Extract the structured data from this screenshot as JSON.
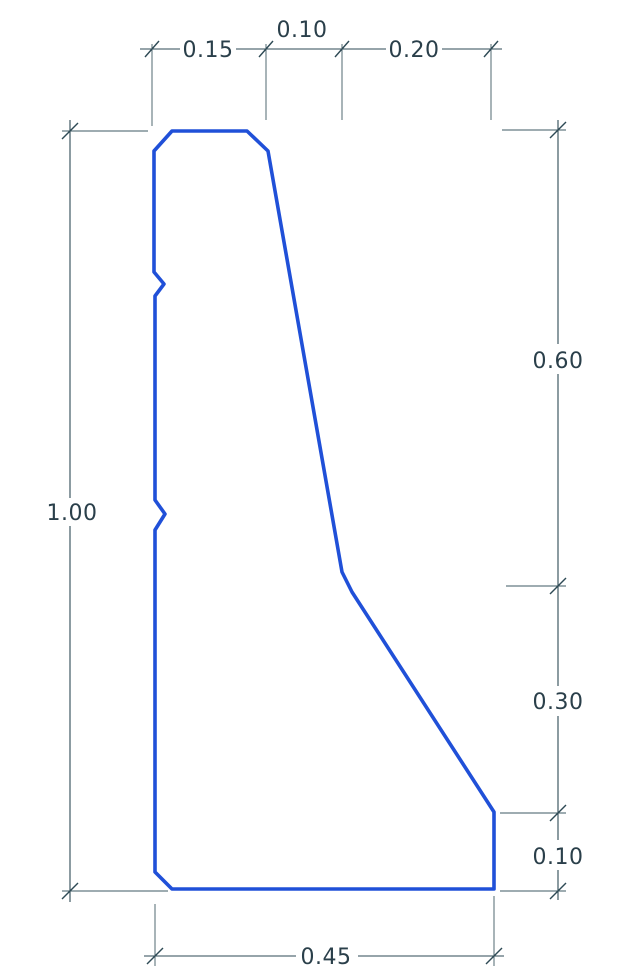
{
  "profile": {
    "stroke_color": "#2050d8"
  },
  "dimensions": {
    "top_left_width": "0.15",
    "top_mid_width": "0.10",
    "top_right_width": "0.20",
    "total_height": "1.00",
    "upper_right_height": "0.60",
    "middle_right_height": "0.30",
    "lower_right_height": "0.10",
    "base_width": "0.45"
  },
  "line_color": "#2e4a55"
}
